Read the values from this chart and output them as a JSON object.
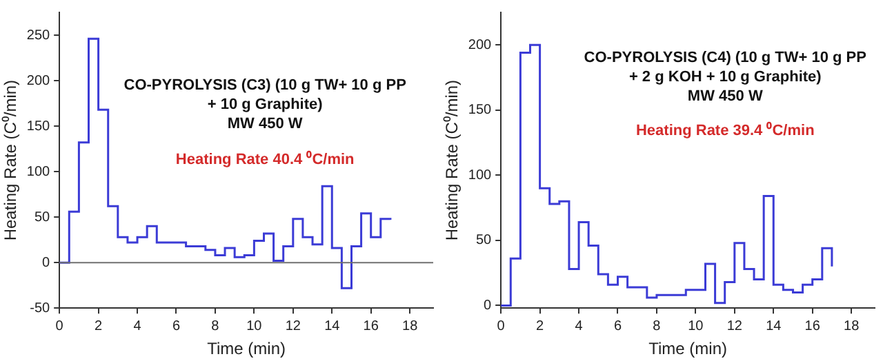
{
  "chart_data": [
    {
      "type": "step",
      "xlabel": "Time (min)",
      "ylabel": "Heating Rate (C⁰/min)",
      "x": [
        0,
        0.5,
        1,
        1.5,
        2,
        2.5,
        3,
        3.5,
        4,
        4.5,
        5,
        5.5,
        6,
        6.5,
        7,
        7.5,
        8,
        8.5,
        9,
        9.5,
        10,
        10.5,
        11,
        11.5,
        12,
        12.5,
        13,
        13.5,
        14,
        14.5,
        15,
        15.5,
        16,
        16.5,
        17
      ],
      "series": [
        {
          "color": "#3b3bd6",
          "values": [
            0,
            56,
            132,
            246,
            168,
            62,
            28,
            22,
            28,
            40,
            22,
            22,
            22,
            18,
            18,
            14,
            8,
            16,
            6,
            8,
            24,
            32,
            2,
            18,
            48,
            28,
            20,
            84,
            16,
            -28,
            18,
            54,
            28,
            48,
            47
          ]
        }
      ],
      "xlim": [
        0,
        19.2
      ],
      "xticks": [
        0,
        2,
        4,
        6,
        8,
        10,
        12,
        14,
        16,
        18
      ],
      "ylim": [
        -50,
        275
      ],
      "yticks": [
        -50,
        0,
        50,
        100,
        150,
        200,
        250
      ],
      "ref_lines": [
        {
          "axis": "y",
          "value": 0,
          "color": "#707070"
        }
      ],
      "annotations": [
        "CO-PYROLYSIS (C3) (10 g TW+ 10 g PP",
        "+ 10 g Graphite)",
        "MW 450 W",
        "Heating Rate 40.4 ⁰C/min"
      ],
      "grid": false,
      "legend": false,
      "marker": "none",
      "line_style": "solid"
    },
    {
      "type": "step",
      "xlabel": "Time (min)",
      "ylabel": "Heating Rate (C⁰/min)",
      "x": [
        0,
        0.5,
        1,
        1.5,
        2,
        2.5,
        3,
        3.5,
        4,
        4.5,
        5,
        5.5,
        6,
        6.5,
        7,
        7.5,
        8,
        8.5,
        9,
        9.5,
        10,
        10.5,
        11,
        11.5,
        12,
        12.5,
        13,
        13.5,
        14,
        14.5,
        15,
        15.5,
        16,
        16.5,
        17
      ],
      "series": [
        {
          "color": "#3b3bd6",
          "values": [
            0,
            36,
            194,
            200,
            90,
            78,
            80,
            28,
            64,
            46,
            24,
            16,
            22,
            14,
            14,
            6,
            8,
            8,
            8,
            12,
            12,
            32,
            2,
            18,
            48,
            28,
            20,
            84,
            16,
            12,
            10,
            16,
            20,
            44,
            30
          ]
        }
      ],
      "xlim": [
        0,
        19.2
      ],
      "xticks": [
        0,
        2,
        4,
        6,
        8,
        10,
        12,
        14,
        16,
        18
      ],
      "ylim": [
        -2,
        225
      ],
      "yticks": [
        0,
        50,
        100,
        150,
        200
      ],
      "annotations": [
        "CO-PYROLYSIS (C4) (10 g TW+ 10 g PP",
        "+ 2 g KOH + 10 g Graphite)",
        "MW 450 W",
        "Heating Rate 39.4 ⁰C/min"
      ],
      "grid": false,
      "legend": false,
      "marker": "none",
      "line_style": "solid"
    }
  ]
}
